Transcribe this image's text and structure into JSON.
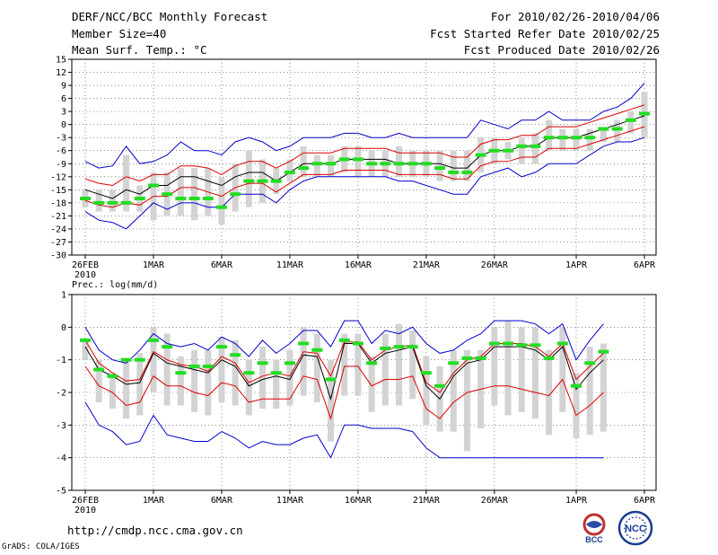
{
  "header": {
    "title": "DERF/NCC/BCC Monthly Forecast",
    "member_size": "Member Size=40",
    "variable": "Mean Surf. Temp.: °C",
    "period": "For 2010/02/26-2010/04/06",
    "started": "Fcst Started Refer Date 2010/02/25",
    "produced": "Fcst Produced Date 2010/02/26"
  },
  "footer": {
    "url": "http://cmdp.ncc.cma.gov.cn",
    "credit": "GrADS: COLA/IGES",
    "logo_bcc": "BCC",
    "logo_ncc": "NCC"
  },
  "colors": {
    "box": "#d3d3d3",
    "green": "#22dd22",
    "mean": "#000000",
    "spread": "#dd0000",
    "envelope": "#0000cc",
    "grid": "#444444"
  },
  "chart_data": [
    {
      "type": "line",
      "title": "Mean Surf. Temp.: °C",
      "ylim": [
        -30,
        15
      ],
      "yticks": [
        15,
        12,
        9,
        6,
        3,
        0,
        -3,
        -6,
        -9,
        -12,
        -15,
        -18,
        -21,
        -24,
        -27,
        -30
      ],
      "xtick_labels": [
        "26FEB",
        "1MAR",
        "6MAR",
        "11MAR",
        "16MAR",
        "21MAR",
        "26MAR",
        "1APR",
        "6APR"
      ],
      "xtick_index": [
        0,
        5,
        10,
        15,
        20,
        25,
        30,
        36,
        41
      ],
      "xsub_label": "2010",
      "series": [
        {
          "name": "mean",
          "values": [
            -15,
            -16,
            -17,
            -15,
            -16,
            -14,
            -14,
            -12,
            -12,
            -13,
            -14,
            -12,
            -11,
            -11,
            -13,
            -11,
            -9,
            -9,
            -9,
            -8,
            -8,
            -8,
            -8,
            -9,
            -9,
            -9,
            -9,
            -10,
            -10,
            -7,
            -6,
            -6,
            -5,
            -5,
            -3,
            -3,
            -3,
            -2,
            -1,
            0,
            1,
            2
          ]
        },
        {
          "name": "upper_spread",
          "values": [
            -12.5,
            -13.5,
            -14,
            -12,
            -13,
            -11.5,
            -11.5,
            -9.5,
            -9.5,
            -10,
            -11.5,
            -9.5,
            -8.5,
            -8.5,
            -10,
            -8.5,
            -6.5,
            -6.5,
            -6.5,
            -5.5,
            -5.5,
            -5.5,
            -5.5,
            -6.5,
            -6.5,
            -6.5,
            -6.5,
            -7.5,
            -7.5,
            -4.5,
            -3.5,
            -3.5,
            -2.5,
            -2.5,
            -0.5,
            -0.5,
            -0.5,
            0.5,
            1.5,
            2.5,
            3.5,
            4.5
          ]
        },
        {
          "name": "lower_spread",
          "values": [
            -17.5,
            -18.5,
            -19,
            -18,
            -18.5,
            -16.5,
            -16.5,
            -14.5,
            -14.5,
            -15.5,
            -16.5,
            -14.5,
            -13.5,
            -13.5,
            -15.5,
            -13.5,
            -11.5,
            -11.5,
            -11.5,
            -10.5,
            -10.5,
            -10.5,
            -10.5,
            -11.5,
            -11.5,
            -11.5,
            -11.5,
            -12.5,
            -12.5,
            -9.5,
            -8.5,
            -8.5,
            -7.5,
            -7.5,
            -5.5,
            -5.5,
            -5.5,
            -4.5,
            -3.5,
            -2.5,
            -1.5,
            -0.5
          ]
        },
        {
          "name": "max",
          "values": [
            -8.5,
            -10,
            -9.5,
            -5,
            -9,
            -8.5,
            -7,
            -4,
            -6,
            -6,
            -7,
            -4,
            -3,
            -4,
            -6,
            -5,
            -3,
            -3,
            -3,
            -2,
            -2,
            -3,
            -3,
            -2,
            -3,
            -3,
            -3,
            -3,
            -3,
            1,
            0,
            -1,
            1,
            1,
            3,
            1,
            1,
            1,
            3,
            4,
            6,
            9.5
          ]
        },
        {
          "name": "min",
          "values": [
            -20,
            -22,
            -22.5,
            -24,
            -21,
            -18,
            -19.5,
            -18,
            -18,
            -19,
            -19,
            -16,
            -16,
            -16,
            -18,
            -15,
            -13,
            -12,
            -12,
            -12,
            -12,
            -12,
            -12,
            -13,
            -13,
            -14,
            -15,
            -16,
            -16,
            -12,
            -11,
            -10,
            -12,
            -11,
            -9,
            -9,
            -9,
            -7,
            -5,
            -4,
            -4,
            -3
          ]
        },
        {
          "name": "median_marker",
          "values": [
            -17,
            -18,
            -18,
            -18,
            -17,
            -14,
            -16,
            -17,
            -17,
            -17,
            -19,
            -16,
            -13,
            -13,
            -13,
            -11,
            -10,
            -9,
            -9,
            -8,
            -8,
            -9,
            -9,
            -9,
            -9,
            -9,
            -10,
            -11,
            -11,
            -7,
            -6,
            -6,
            -5,
            -5,
            -3,
            -3,
            -3,
            -3,
            -1,
            -1,
            1,
            2.5
          ]
        },
        {
          "name": "box_high",
          "values": [
            -15,
            -15,
            -15,
            -7,
            -14,
            -11,
            -11,
            -10,
            -10,
            -10,
            -12,
            -9,
            -6,
            -8,
            -10,
            -8,
            -5,
            -7,
            -7,
            -5,
            -5,
            -6,
            -6,
            -5,
            -6,
            -6,
            -6,
            -6,
            -6,
            -3,
            -3,
            -4,
            -3,
            -2,
            1,
            -1,
            -1,
            -1,
            -1,
            1,
            3,
            7.5
          ]
        },
        {
          "name": "box_low",
          "values": [
            -19,
            -20,
            -20,
            -20,
            -20,
            -22,
            -21,
            -21,
            -22,
            -21,
            -23,
            -20,
            -19,
            -18,
            -16,
            -13,
            -12,
            -12,
            -12,
            -11,
            -12,
            -12,
            -12,
            -12,
            -12,
            -12,
            -13,
            -13,
            -13,
            -11,
            -9,
            -8,
            -9,
            -9,
            -6,
            -6,
            -6,
            -6,
            -4,
            -4,
            -2,
            -3
          ]
        }
      ]
    },
    {
      "type": "line",
      "title": "Prec.: log(mm/d)",
      "ylim": [
        -5,
        1
      ],
      "yticks": [
        1,
        0,
        -1,
        -2,
        -3,
        -4,
        -5
      ],
      "xtick_labels": [
        "26FEB",
        "1MAR",
        "6MAR",
        "11MAR",
        "16MAR",
        "21MAR",
        "26MAR",
        "1APR",
        "6APR"
      ],
      "xtick_index": [
        0,
        5,
        10,
        15,
        20,
        25,
        30,
        36,
        41
      ],
      "xsub_label": "2010",
      "series": [
        {
          "name": "mean",
          "values": [
            -0.6,
            -1.3,
            -1.5,
            -1.75,
            -1.7,
            -0.8,
            -1.1,
            -1.2,
            -1.3,
            -1.4,
            -1.0,
            -1.2,
            -1.8,
            -1.6,
            -1.5,
            -1.6,
            -0.85,
            -0.9,
            -2.2,
            -0.5,
            -0.5,
            -1.1,
            -0.8,
            -0.7,
            -0.6,
            -1.8,
            -2.2,
            -1.5,
            -1.1,
            -1.0,
            -0.6,
            -0.6,
            -0.6,
            -0.7,
            -1.0,
            -0.6,
            -1.9,
            -1.4,
            -1.0
          ]
        },
        {
          "name": "upper_spread",
          "values": [
            -0.4,
            -1.1,
            -1.4,
            -1.65,
            -1.6,
            -0.75,
            -1.0,
            -1.15,
            -1.2,
            -1.35,
            -0.9,
            -1.1,
            -1.7,
            -1.5,
            -1.4,
            -1.5,
            -0.75,
            -0.8,
            -1.5,
            -0.45,
            -0.45,
            -1.0,
            -0.7,
            -0.6,
            -0.55,
            -1.7,
            -2.0,
            -1.4,
            -1.0,
            -0.9,
            -0.5,
            -0.5,
            -0.5,
            -0.6,
            -0.9,
            -0.5,
            -1.6,
            -1.2,
            -0.8
          ]
        },
        {
          "name": "lower_spread",
          "values": [
            -1.2,
            -1.8,
            -2.0,
            -2.4,
            -2.3,
            -1.5,
            -1.8,
            -1.8,
            -2.0,
            -2.1,
            -1.7,
            -1.8,
            -2.3,
            -2.2,
            -2.2,
            -2.2,
            -1.5,
            -1.6,
            -2.8,
            -1.2,
            -1.2,
            -1.8,
            -1.6,
            -1.6,
            -1.5,
            -2.5,
            -2.8,
            -2.3,
            -2.0,
            -1.9,
            -1.8,
            -1.8,
            -1.9,
            -2.0,
            -2.1,
            -1.6,
            -2.7,
            -2.4,
            -2.0
          ]
        },
        {
          "name": "max",
          "values": [
            0,
            -0.7,
            -1.0,
            -1.1,
            -0.7,
            -0.2,
            -0.5,
            -0.6,
            -0.5,
            -0.7,
            -0.3,
            -0.5,
            -0.9,
            -0.4,
            -0.8,
            -0.5,
            -0.1,
            -0.1,
            -0.6,
            0.2,
            0.2,
            -0.5,
            -0.1,
            -0.2,
            0,
            -0.5,
            -0.8,
            -0.7,
            -0.4,
            -0.2,
            0.2,
            0.2,
            0.2,
            0.1,
            -0.2,
            0.1,
            -1.0,
            -0.4,
            0.1
          ]
        },
        {
          "name": "min",
          "values": [
            -2.3,
            -3.0,
            -3.2,
            -3.6,
            -3.5,
            -2.7,
            -3.3,
            -3.4,
            -3.5,
            -3.5,
            -3.2,
            -3.4,
            -3.7,
            -3.5,
            -3.6,
            -3.6,
            -3.4,
            -3.3,
            -4.0,
            -3.0,
            -3.0,
            -3.1,
            -3.1,
            -3.1,
            -3.2,
            -3.7,
            -4.0,
            -4.0,
            -4.0,
            -4.0,
            -4.0,
            -4.0,
            -4.0,
            -4.0,
            -4.0,
            -4.0,
            -4.0,
            -4.0,
            -4.0
          ]
        },
        {
          "name": "median_marker",
          "values": [
            -0.4,
            -1.3,
            -1.5,
            -1.0,
            -1.0,
            -0.4,
            -0.6,
            -1.4,
            -1.2,
            -1.2,
            -0.6,
            -0.85,
            -1.4,
            -1.1,
            -1.4,
            -1.1,
            -0.5,
            -0.7,
            -1.6,
            -0.4,
            -0.5,
            -1.1,
            -0.65,
            -0.6,
            -0.6,
            -1.4,
            -1.8,
            -1.1,
            -0.95,
            -0.95,
            -0.5,
            -0.5,
            -0.55,
            -0.55,
            -0.95,
            -0.5,
            -1.8,
            -1.1,
            -0.75
          ]
        },
        {
          "name": "box_high",
          "values": [
            -0.4,
            -1.0,
            -1.4,
            -1.0,
            -0.8,
            0,
            -0.2,
            -0.9,
            -0.7,
            -0.7,
            -0.3,
            -0.4,
            -1.0,
            -0.6,
            -1.0,
            -0.7,
            0,
            -0.2,
            -1.0,
            -0.2,
            -0.2,
            -0.9,
            -0.2,
            0.1,
            -0.1,
            -0.9,
            -1.2,
            -0.7,
            -0.7,
            -0.7,
            0,
            0.2,
            0,
            0,
            -0.7,
            0,
            -1.4,
            -0.6,
            -0.5
          ]
        },
        {
          "name": "box_low",
          "values": [
            -1.0,
            -2.3,
            -2.5,
            -2.8,
            -2.7,
            -2.0,
            -2.4,
            -2.4,
            -2.6,
            -2.7,
            -2.3,
            -2.4,
            -2.7,
            -2.5,
            -2.5,
            -2.4,
            -2.1,
            -2.3,
            -3.5,
            -2.1,
            -2.1,
            -2.6,
            -2.4,
            -2.4,
            -2.2,
            -3.0,
            -3.2,
            -3.2,
            -3.8,
            -3.1,
            -2.4,
            -2.7,
            -2.6,
            -2.8,
            -3.3,
            -2.6,
            -3.4,
            -3.3,
            -3.2
          ]
        }
      ]
    }
  ]
}
